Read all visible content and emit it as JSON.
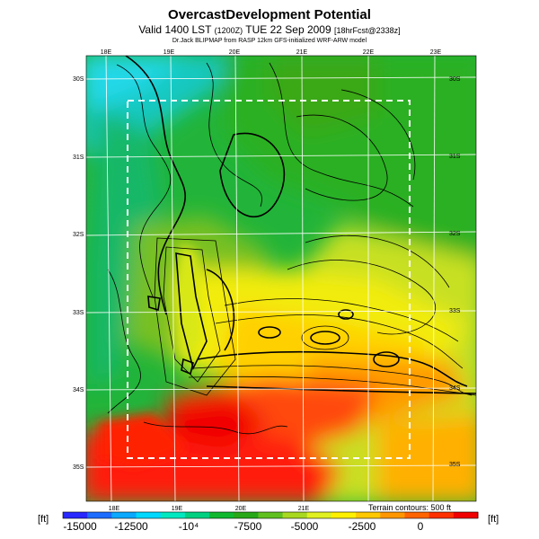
{
  "header": {
    "title": "OvercastDevelopment Potential",
    "valid_prefix": "Valid 1400 LST",
    "valid_code": "(1200Z)",
    "valid_date": "TUE 22 Sep 2009",
    "forecast_info": "[18hrFcst@2338z]",
    "subtitle": "Dr.Jack BLIPMAP from RASP 12km GFS-initialized WRF-ARW model"
  },
  "map": {
    "lon_labels_top": [
      "18E",
      "19E",
      "20E",
      "21E",
      "22E",
      "23E"
    ],
    "lon_labels_bottom": [
      "18E",
      "19E",
      "20E",
      "21E"
    ],
    "lat_labels_right": [
      "30S",
      "31S",
      "32S",
      "33S",
      "34S",
      "35S"
    ],
    "lat_labels_left": [
      "30S",
      "31S",
      "32S",
      "33S",
      "34S",
      "35S"
    ],
    "terrain_note": "Terrain contours: 500 ft"
  },
  "legend": {
    "unit_left": "[ft]",
    "unit_right": "[ft]",
    "ticks": [
      "-15000",
      "-12500",
      "-10⁴",
      "-7500",
      "-5000",
      "-2500",
      "0"
    ],
    "colors": [
      "#2828ff",
      "#1c6cff",
      "#0aa8ff",
      "#00d8ff",
      "#00e8c0",
      "#00d080",
      "#10b830",
      "#28a818",
      "#60c020",
      "#a8d820",
      "#e0f020",
      "#fff000",
      "#ffc800",
      "#ff9600",
      "#ff6400",
      "#ff3000",
      "#f00000"
    ]
  }
}
